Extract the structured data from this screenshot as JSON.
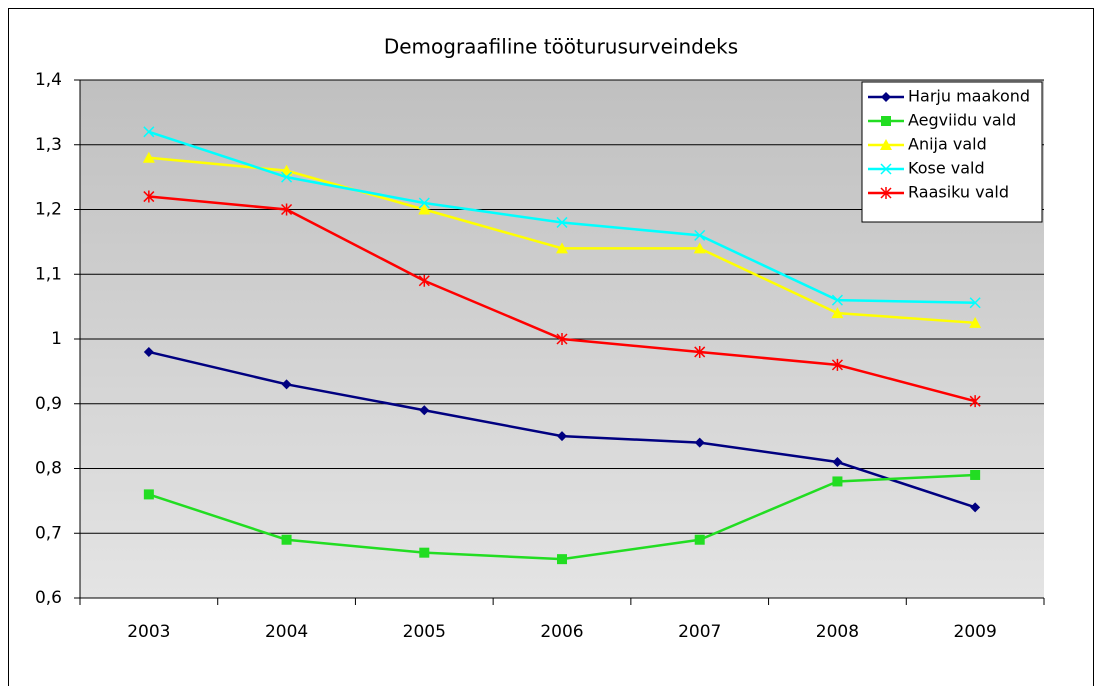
{
  "chart_data": {
    "type": "line",
    "title": "Demograafiline tööturusurveindeks",
    "categories": [
      "2003",
      "2004",
      "2005",
      "2006",
      "2007",
      "2008",
      "2009"
    ],
    "series": [
      {
        "name": "Harju maakond",
        "color": "#000080",
        "marker": "diamond",
        "values": [
          0.98,
          0.93,
          0.89,
          0.85,
          0.84,
          0.81,
          0.74
        ]
      },
      {
        "name": "Aegviidu vald",
        "color": "#22dd22",
        "marker": "square",
        "values": [
          0.76,
          0.69,
          0.67,
          0.66,
          0.69,
          0.78,
          0.79
        ]
      },
      {
        "name": "Anija vald",
        "color": "#ffff00",
        "marker": "triangle",
        "values": [
          1.28,
          1.26,
          1.2,
          1.14,
          1.14,
          1.04,
          1.025
        ]
      },
      {
        "name": "Kose vald",
        "color": "#00ffff",
        "marker": "x",
        "values": [
          1.32,
          1.25,
          1.21,
          1.18,
          1.16,
          1.06,
          1.056
        ]
      },
      {
        "name": "Raasiku vald",
        "color": "#ff0000",
        "marker": "star",
        "values": [
          1.22,
          1.2,
          1.09,
          1.0,
          0.98,
          0.96,
          0.904
        ]
      }
    ],
    "ylim": [
      0.6,
      1.4
    ],
    "yticks": [
      {
        "value": 0.6,
        "label": "0,6"
      },
      {
        "value": 0.7,
        "label": "0,7"
      },
      {
        "value": 0.8,
        "label": "0,8"
      },
      {
        "value": 0.9,
        "label": "0,9"
      },
      1,
      {
        "value": 1.1,
        "label": "1,1"
      },
      {
        "value": 1.2,
        "label": "1,2"
      },
      {
        "value": 1.3,
        "label": "1,3"
      },
      {
        "value": 1.4,
        "label": "1,4"
      }
    ],
    "grid": true,
    "legend": "top-right"
  }
}
